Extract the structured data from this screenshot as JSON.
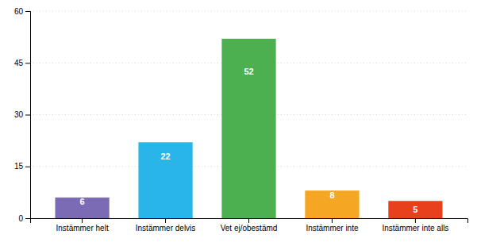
{
  "chart_data": {
    "type": "bar",
    "categories": [
      "Instämmer helt",
      "Instämmer delvis",
      "Vet ej/obestämd",
      "Instämmer inte",
      "Instämmer inte alls"
    ],
    "values": [
      6,
      22,
      52,
      8,
      5
    ],
    "colors": [
      "#7b6bb5",
      "#29b5e8",
      "#4caf50",
      "#f5a623",
      "#e8401c"
    ],
    "ylim": [
      0,
      60
    ],
    "yticks": [
      0,
      15,
      30,
      45,
      60
    ],
    "grid": true,
    "data_labels": true
  }
}
